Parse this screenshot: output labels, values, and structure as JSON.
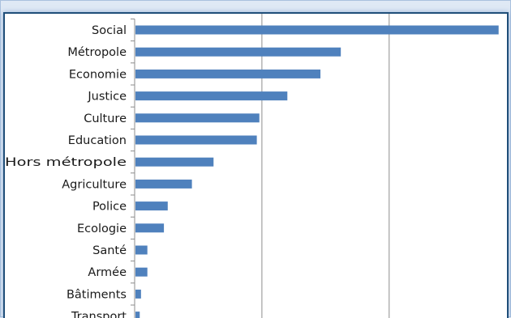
{
  "chart_data": {
    "type": "bar",
    "orientation": "horizontal",
    "title": "",
    "xlabel": "",
    "ylabel": "",
    "categories": [
      "Social",
      "Métropole",
      "Economie",
      "Justice",
      "Culture",
      "Education",
      "Hors métropole",
      "Agriculture",
      "Police",
      "Ecologie",
      "Santé",
      "Armée",
      "Bâtiments",
      "Transport"
    ],
    "values": [
      143,
      81,
      73,
      60,
      49,
      48,
      31,
      22.5,
      13,
      11.5,
      5,
      5,
      2.5,
      2
    ],
    "xlim": [
      0,
      145
    ],
    "grid": true,
    "gridlines_at": [
      50,
      100
    ],
    "legend": "none",
    "bar_color": "#4f81bd",
    "axis_color": "#8c8c8c",
    "gridline_color": "#8c8c8c"
  }
}
